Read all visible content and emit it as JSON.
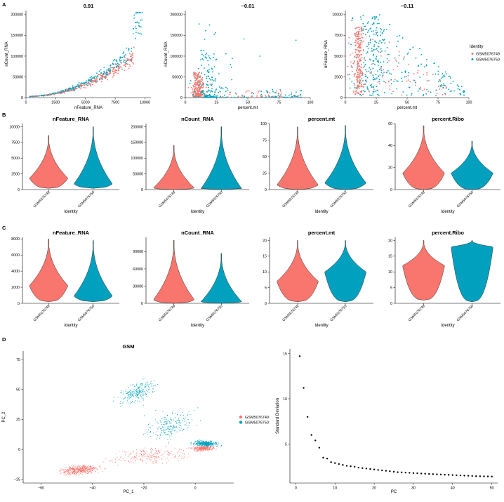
{
  "colors": {
    "s1": "#F8766D",
    "s2": "#00A0BE",
    "axis": "#000000"
  },
  "panel_letters": [
    "A",
    "B",
    "C",
    "D"
  ],
  "legend_a": {
    "title": "Identity",
    "items": [
      "GSM5076749",
      "GSM5076750"
    ]
  },
  "legend_d": {
    "items": [
      "GSM5076749",
      "GSM5076750"
    ]
  },
  "chart_data": [
    {
      "id": "A1",
      "type": "scatter",
      "title": "0.91",
      "xlabel": "nFeature_RNA",
      "ylabel": "nCount_RNA",
      "xlim": [
        0,
        10500
      ],
      "ylim": [
        0,
        210000
      ],
      "xticks": [
        0,
        2500,
        5000,
        7500,
        10000
      ],
      "yticks": [
        0,
        50000,
        100000,
        150000,
        200000
      ],
      "xtick_labels": [
        "0",
        "2500",
        "5000",
        "7500",
        "10000"
      ],
      "ytick_labels": [
        "0",
        "50000",
        "100000",
        "150000",
        "200000"
      ],
      "series": [
        {
          "name": "GSM5076749",
          "trend": "convex curve up to ~9000 features / 140000 counts"
        },
        {
          "name": "GSM5076750",
          "trend": "convex curve up to ~10000 features / 200000 counts"
        }
      ]
    },
    {
      "id": "A2",
      "type": "scatter",
      "title": "−0.01",
      "xlabel": "percent.mt",
      "ylabel": "nCount_RNA",
      "xlim": [
        0,
        100
      ],
      "ylim": [
        0,
        210000
      ],
      "xticks": [
        0,
        25,
        50,
        75,
        100
      ],
      "yticks": [
        0,
        50000,
        100000,
        150000,
        200000
      ],
      "xtick_labels": [
        "0",
        "25",
        "50",
        "75",
        "100"
      ],
      "ytick_labels": [
        "0",
        "50000",
        "100000",
        "150000",
        "200000"
      ]
    },
    {
      "id": "A3",
      "type": "scatter",
      "title": "−0.11",
      "xlabel": "percent.mt",
      "ylabel": "nFeature_RNA",
      "xlim": [
        0,
        100
      ],
      "ylim": [
        0,
        10500
      ],
      "xticks": [
        0,
        25,
        50,
        75,
        100
      ],
      "yticks": [
        0,
        2500,
        5000,
        7500,
        10000
      ],
      "xtick_labels": [
        "0",
        "25",
        "50",
        "75",
        "100"
      ],
      "ytick_labels": [
        "0",
        "2500",
        "5000",
        "7500",
        "10000"
      ]
    },
    {
      "id": "B1",
      "type": "violin",
      "title": "nFeature_RNA",
      "xlabel": "Identity",
      "ylim": [
        0,
        10500
      ],
      "yticks": [
        0,
        2500,
        5000,
        7500,
        10000
      ],
      "ytick_labels": [
        "0",
        "2500",
        "5000",
        "7500",
        "10000"
      ],
      "categories": [
        "GSM5076749",
        "GSM5076750"
      ],
      "series": [
        {
          "name": "GSM5076749",
          "min": 200,
          "max": 8600,
          "mode": 1800
        },
        {
          "name": "GSM5076750",
          "min": 200,
          "max": 10000,
          "mode": 900
        }
      ]
    },
    {
      "id": "B2",
      "type": "violin",
      "title": "nCount_RNA",
      "xlabel": "Identity",
      "ylim": [
        0,
        210000
      ],
      "yticks": [
        0,
        50000,
        100000,
        150000,
        200000
      ],
      "ytick_labels": [
        "0",
        "50000",
        "100000",
        "150000",
        "200000"
      ],
      "categories": [
        "GSM5076749",
        "GSM5076750"
      ],
      "series": [
        {
          "name": "GSM5076749",
          "min": 0,
          "max": 140000,
          "mode": 5000
        },
        {
          "name": "GSM5076750",
          "min": 0,
          "max": 200000,
          "mode": 2000
        }
      ]
    },
    {
      "id": "B3",
      "type": "violin",
      "title": "percent.mt",
      "xlabel": "Identity",
      "ylim": [
        0,
        100
      ],
      "yticks": [
        0,
        25,
        50,
        75,
        100
      ],
      "ytick_labels": [
        "0",
        "25",
        "50",
        "75",
        "100"
      ],
      "categories": [
        "GSM5076749",
        "GSM5076750"
      ],
      "series": [
        {
          "name": "GSM5076749",
          "min": 0,
          "max": 95,
          "mode": 7
        },
        {
          "name": "GSM5076750",
          "min": 0,
          "max": 97,
          "mode": 10
        }
      ]
    },
    {
      "id": "B4",
      "type": "violin",
      "title": "percent.Ribo",
      "xlabel": "Identity",
      "ylim": [
        0,
        60
      ],
      "yticks": [
        0,
        20,
        40,
        60
      ],
      "ytick_labels": [
        "0",
        "20",
        "40",
        "60"
      ],
      "categories": [
        "GSM5076749",
        "GSM5076750"
      ],
      "series": [
        {
          "name": "GSM5076749",
          "min": 0,
          "max": 58,
          "mode": 15
        },
        {
          "name": "GSM5076750",
          "min": 0,
          "max": 44,
          "mode": 15
        }
      ]
    },
    {
      "id": "C1",
      "type": "violin",
      "title": "nFeature_RNA",
      "xlabel": "Identity",
      "ylim": [
        0,
        8200
      ],
      "yticks": [
        0,
        2000,
        4000,
        6000,
        8000
      ],
      "ytick_labels": [
        "0",
        "2000",
        "4000",
        "6000",
        "8000"
      ],
      "categories": [
        "GSM5076749",
        "GSM5076750"
      ],
      "series": [
        {
          "name": "GSM5076749",
          "min": 200,
          "max": 8000,
          "mode": 2200
        },
        {
          "name": "GSM5076750",
          "min": 200,
          "max": 7800,
          "mode": 900
        }
      ]
    },
    {
      "id": "C2",
      "type": "violin",
      "title": "nCount_RNA",
      "xlabel": "Identity",
      "ylim": [
        0,
        115000
      ],
      "yticks": [
        0,
        30000,
        60000,
        90000
      ],
      "ytick_labels": [
        "0",
        "30000",
        "60000",
        "90000"
      ],
      "categories": [
        "GSM5076749",
        "GSM5076750"
      ],
      "series": [
        {
          "name": "GSM5076749",
          "min": 0,
          "max": 110000,
          "mode": 6000
        },
        {
          "name": "GSM5076750",
          "min": 0,
          "max": 87000,
          "mode": 2500
        }
      ]
    },
    {
      "id": "C3",
      "type": "violin",
      "title": "percent.mt",
      "xlabel": "Identity",
      "ylim": [
        0,
        21
      ],
      "yticks": [
        0,
        5,
        10,
        15,
        20
      ],
      "ytick_labels": [
        "0",
        "5",
        "10",
        "15",
        "20"
      ],
      "categories": [
        "GSM5076749",
        "GSM5076750"
      ],
      "series": [
        {
          "name": "GSM5076749",
          "min": 0.5,
          "max": 20,
          "mode": 7
        },
        {
          "name": "GSM5076750",
          "min": 0.5,
          "max": 20,
          "mode": 10
        }
      ]
    },
    {
      "id": "C4",
      "type": "violin",
      "title": "percent.Ribo",
      "xlabel": "Identity",
      "ylim": [
        0,
        21
      ],
      "yticks": [
        0,
        5,
        10,
        15,
        20
      ],
      "ytick_labels": [
        "0",
        "5",
        "10",
        "15",
        "20"
      ],
      "categories": [
        "GSM5076749",
        "GSM5076750"
      ],
      "series": [
        {
          "name": "GSM5076749",
          "min": 1,
          "max": 20,
          "mode": 12
        },
        {
          "name": "GSM5076750",
          "min": 0.5,
          "max": 20,
          "mode": 18
        }
      ]
    },
    {
      "id": "D1",
      "type": "scatter",
      "title": "GSM",
      "xlabel": "PC_1",
      "ylabel": "PC_2",
      "xlim": [
        -67,
        15
      ],
      "ylim": [
        -28,
        82
      ],
      "xticks": [
        -60,
        -40,
        -20,
        0
      ],
      "yticks": [
        -25,
        0,
        25,
        50,
        75
      ],
      "xtick_labels": [
        "−60",
        "−40",
        "−20",
        "0"
      ],
      "ytick_labels": [
        "−25",
        "0",
        "25",
        "50",
        "75"
      ]
    },
    {
      "id": "D2",
      "type": "scatter",
      "title": "",
      "xlabel": "PC",
      "ylabel": "Standard Deviation",
      "xlim": [
        -1.5,
        51.5
      ],
      "ylim": [
        0.7,
        15.5
      ],
      "xticks": [
        0,
        10,
        20,
        30,
        40,
        50
      ],
      "yticks": [
        5,
        10,
        15
      ],
      "xtick_labels": [
        "0",
        "10",
        "20",
        "30",
        "40",
        "50"
      ],
      "ytick_labels": [
        "5",
        "10",
        "15"
      ],
      "x": [
        1,
        2,
        3,
        4,
        5,
        6,
        7,
        8,
        9,
        10,
        11,
        12,
        13,
        14,
        15,
        16,
        17,
        18,
        19,
        20,
        21,
        22,
        23,
        24,
        25,
        26,
        27,
        28,
        29,
        30,
        31,
        32,
        33,
        34,
        35,
        36,
        37,
        38,
        39,
        40,
        41,
        42,
        43,
        44,
        45,
        46,
        47,
        48,
        49,
        50
      ],
      "y": [
        14.7,
        11.2,
        8.0,
        6.0,
        5.4,
        4.6,
        3.5,
        3.4,
        3.0,
        2.9,
        2.8,
        2.7,
        2.6,
        2.55,
        2.5,
        2.4,
        2.35,
        2.3,
        2.25,
        2.2,
        2.15,
        2.1,
        2.05,
        2.0,
        1.95,
        1.9,
        1.88,
        1.85,
        1.83,
        1.8,
        1.78,
        1.75,
        1.73,
        1.7,
        1.68,
        1.66,
        1.64,
        1.62,
        1.6,
        1.58,
        1.56,
        1.54,
        1.52,
        1.5,
        1.48,
        1.46,
        1.45,
        1.44,
        1.43,
        1.42
      ]
    }
  ]
}
